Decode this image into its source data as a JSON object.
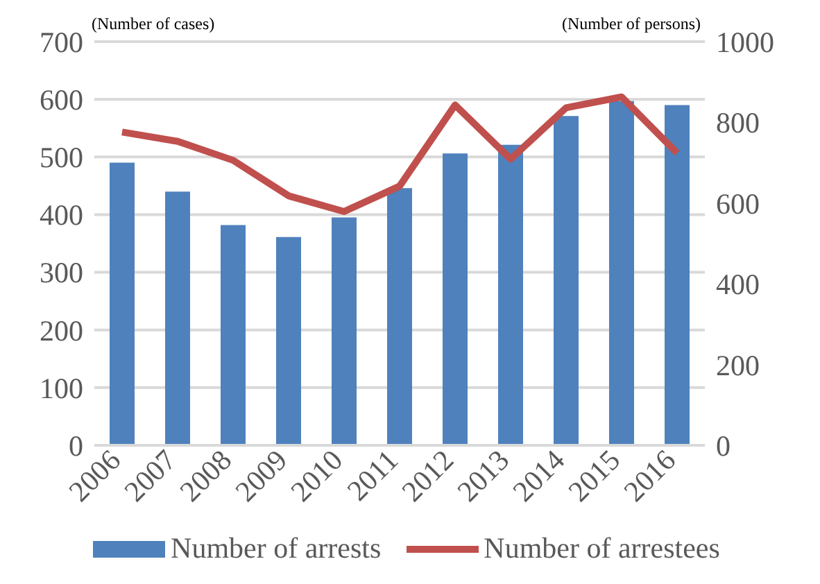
{
  "chart_data": {
    "type": "bar",
    "ylabel": "(Number of cases)",
    "y2label": "(Number of persons)",
    "categories": [
      "2006",
      "2007",
      "2008",
      "2009",
      "2010",
      "2011",
      "2012",
      "2013",
      "2014",
      "2015",
      "2016"
    ],
    "series": [
      {
        "name": "Number of arrests",
        "color": "#4f81bd",
        "values": [
          490,
          440,
          382,
          361,
          395,
          446,
          506,
          521,
          571,
          597,
          590
        ]
      },
      {
        "name": "Number of arrestees",
        "type": "line",
        "axis": "y2",
        "color": "#c0504d",
        "values": [
          776,
          753,
          706,
          618,
          579,
          642,
          843,
          709,
          836,
          863,
          724
        ]
      }
    ],
    "ylim": [
      0,
      700
    ],
    "yticks": [
      0,
      100,
      200,
      300,
      400,
      500,
      600,
      700
    ],
    "y2lim": [
      0,
      1000
    ],
    "y2ticks": [
      0,
      200,
      400,
      600,
      800,
      1000
    ],
    "grid": "y",
    "legend": "bottom",
    "marker": "none",
    "line_style": "solid"
  }
}
